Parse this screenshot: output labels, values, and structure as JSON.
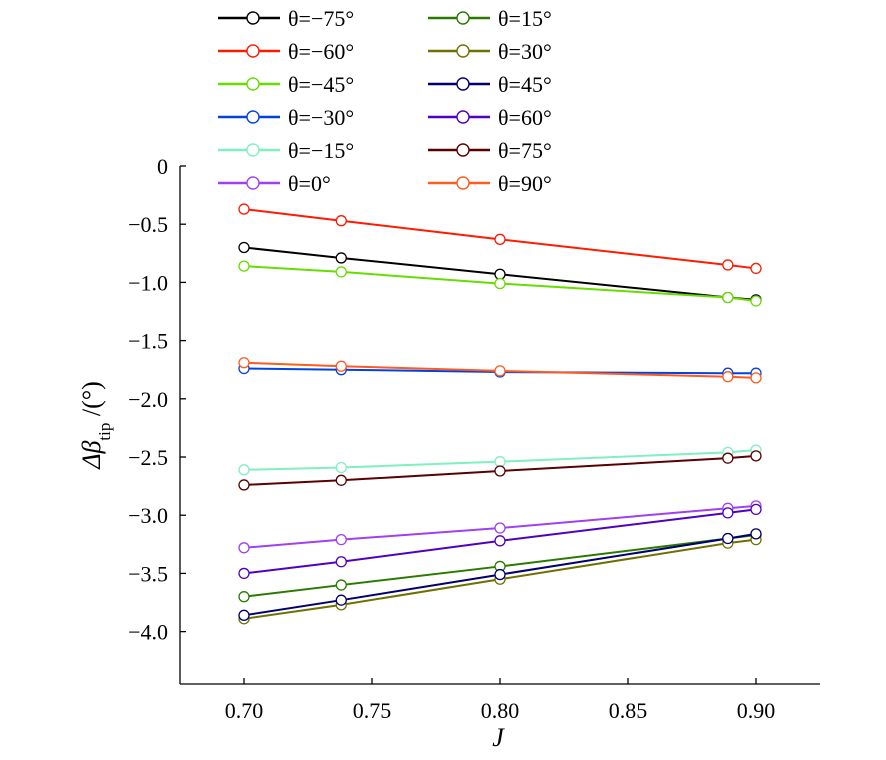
{
  "chart_data": {
    "type": "line",
    "xlabel": "J",
    "ylabel": {
      "prefix": "Δβ",
      "subscript": "tip",
      "suffix": " /(°)"
    },
    "xlim": [
      0.675,
      0.925
    ],
    "ylim": [
      -4.45,
      0.0
    ],
    "x_ticks": [
      0.7,
      0.75,
      0.8,
      0.85,
      0.9
    ],
    "x_tick_labels": [
      "0.70",
      "0.75",
      "0.80",
      "0.85",
      "0.90"
    ],
    "y_ticks": [
      0,
      -0.5,
      -1.0,
      -1.5,
      -2.0,
      -2.5,
      -3.0,
      -3.5,
      -4.0
    ],
    "y_tick_labels": [
      "0",
      "−0.5",
      "−1.0",
      "−1.5",
      "−2.0",
      "−2.5",
      "−3.0",
      "−3.5",
      "−4.0"
    ],
    "grid": false,
    "legend_position": "top",
    "x": [
      0.7,
      0.738,
      0.8,
      0.889,
      0.9
    ],
    "series": [
      {
        "name": "θ=−75°",
        "color": "#000000",
        "values": [
          -0.7,
          -0.79,
          -0.93,
          -1.13,
          -1.15
        ]
      },
      {
        "name": "θ=−60°",
        "color": "#ff1a00",
        "values": [
          -0.37,
          -0.47,
          -0.63,
          -0.85,
          -0.88
        ]
      },
      {
        "name": "θ=−45°",
        "color": "#66dd00",
        "values": [
          -0.86,
          -0.91,
          -1.01,
          -1.13,
          -1.16
        ]
      },
      {
        "name": "θ=−30°",
        "color": "#0044dd",
        "values": [
          -1.74,
          -1.75,
          -1.77,
          -1.78,
          -1.78
        ]
      },
      {
        "name": "θ=−15°",
        "color": "#80f0c0",
        "values": [
          -2.61,
          -2.59,
          -2.54,
          -2.46,
          -2.44
        ]
      },
      {
        "name": "θ=0°",
        "color": "#a040f0",
        "values": [
          -3.28,
          -3.21,
          -3.11,
          -2.94,
          -2.92
        ]
      },
      {
        "name": "θ=15°",
        "color": "#2a7a00",
        "values": [
          -3.7,
          -3.6,
          -3.44,
          -3.2,
          -3.17
        ]
      },
      {
        "name": "θ=30°",
        "color": "#707000",
        "values": [
          -3.89,
          -3.77,
          -3.55,
          -3.24,
          -3.21
        ]
      },
      {
        "name": "θ=45°",
        "color": "#000070",
        "values": [
          -3.86,
          -3.73,
          -3.51,
          -3.2,
          -3.16
        ]
      },
      {
        "name": "θ=60°",
        "color": "#5000c0",
        "values": [
          -3.5,
          -3.4,
          -3.22,
          -2.98,
          -2.95
        ]
      },
      {
        "name": "θ=75°",
        "color": "#5a0000",
        "values": [
          -2.74,
          -2.7,
          -2.62,
          -2.51,
          -2.49
        ]
      },
      {
        "name": "θ=90°",
        "color": "#ff5a20",
        "values": [
          -1.69,
          -1.72,
          -1.76,
          -1.81,
          -1.82
        ]
      }
    ]
  }
}
